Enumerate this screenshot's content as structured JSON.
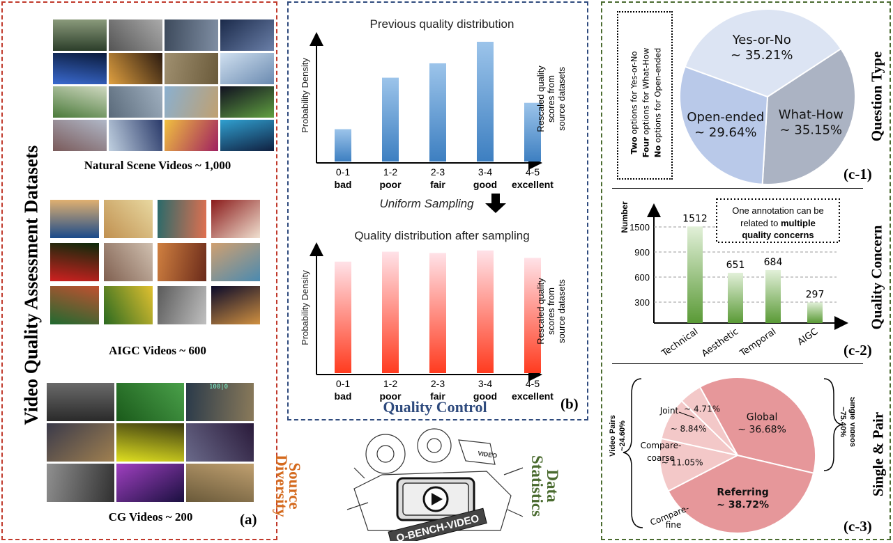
{
  "panel_a": {
    "side_title": "Video Quality Assessment Datasets",
    "natural_label": "Natural Scene Videos ~ 1,000",
    "aigc_label": "AIGC Videos ~ 600",
    "cg_label": "CG Videos ~ 200",
    "tag": "(a)",
    "cg_overlay": "100|0"
  },
  "panel_b": {
    "top_title": "Previous quality distribution",
    "bottom_title": "Quality distribution after sampling",
    "ylabel": "Probability Density",
    "right_label": [
      "Rescaled quality",
      "scores from",
      "source datasets"
    ],
    "arrow_label": "Uniform Sampling",
    "footer": "Quality Control",
    "tag": "(b)",
    "categories": [
      "0-1",
      "1-2",
      "2-3",
      "3-4",
      "4-5"
    ],
    "grades": [
      "bad",
      "poor",
      "fair",
      "good",
      "excellent"
    ]
  },
  "panel_mid": {
    "left_word1": "Source",
    "left_word2": "Diversity",
    "right_word1": "Data",
    "right_word2": "Statistics",
    "logo_text": "Q-BENCH-VIDEO",
    "logo_small": "VIDEO"
  },
  "panel_c": {
    "c1_side": "Question  Type",
    "c1_note": [
      "Two options for Yes-or-No",
      "Four options for What-How",
      "No options for Open-ended"
    ],
    "c1_note_bold": [
      "Two",
      "Four",
      "No"
    ],
    "c1_tag": "(c-1)",
    "c2_side": "Quality Concern",
    "c2_ylabel": "Number",
    "c2_note": [
      "One annotation can be",
      "related to multiple",
      "quality concerns"
    ],
    "c2_tag": "(c-2)",
    "c3_side": "Single & Pair",
    "c3_left_group": [
      "Video Pairs",
      "~24.60%"
    ],
    "c3_right_group": [
      "Single Videos",
      "~75.40%"
    ],
    "c3_tag": "(c-3)"
  },
  "chart_data": [
    {
      "type": "bar",
      "title": "Previous quality distribution",
      "ylabel": "Probability Density",
      "xlabel": "Rescaled quality scores from source datasets",
      "categories": [
        "0-1 bad",
        "1-2 poor",
        "2-3 fair",
        "3-4 good",
        "4-5 excellent"
      ],
      "values": [
        0.27,
        0.7,
        0.82,
        1.0,
        0.49
      ],
      "color": "#5b9bd5"
    },
    {
      "type": "bar",
      "title": "Quality distribution after sampling",
      "ylabel": "Probability Density",
      "xlabel": "Rescaled quality scores from source datasets",
      "categories": [
        "0-1 bad",
        "1-2 poor",
        "2-3 fair",
        "3-4 good",
        "4-5 excellent"
      ],
      "values": [
        0.9,
        0.98,
        0.97,
        0.99,
        0.93
      ],
      "color": "#ff4d4d"
    },
    {
      "type": "pie",
      "labels": [
        "Yes-or-No",
        "What-How",
        "Open-ended"
      ],
      "values": [
        35.21,
        35.15,
        29.64
      ],
      "display": [
        "~ 35.21%",
        "~ 35.15%",
        "~ 29.64%"
      ],
      "colors": [
        "#dce4f3",
        "#abb3c3",
        "#b9c9e9"
      ]
    },
    {
      "type": "bar",
      "ylabel": "Number",
      "categories": [
        "Technical",
        "Aesthetic",
        "Temporal",
        "AIGC"
      ],
      "values": [
        1512,
        651,
        684,
        297
      ],
      "yticks": [
        "300",
        "600",
        "900",
        "1500"
      ],
      "color": "#70ad47"
    },
    {
      "type": "pie",
      "labels": [
        "Global",
        "Referring",
        "Compare-fine",
        "Compare-coarse",
        "Joint"
      ],
      "values": [
        36.68,
        38.72,
        11.05,
        8.84,
        4.71
      ],
      "display": [
        "~ 36.68%",
        "~ 38.72%",
        "~ 11.05%",
        "~ 8.84%",
        "~ 4.71%"
      ],
      "colors": [
        "#e6979a",
        "#e6979a",
        "#f3c8c8",
        "#f3c8c8",
        "#f3c8c8"
      ]
    }
  ],
  "colors": {
    "panel_a_border": "#c0392b",
    "panel_b_border": "#2e4a7d",
    "panel_c_border": "#4a6b2f",
    "source_diversity": "#d46a1e",
    "data_statistics": "#4a6b2f",
    "quality_control": "#2e4a7d"
  }
}
